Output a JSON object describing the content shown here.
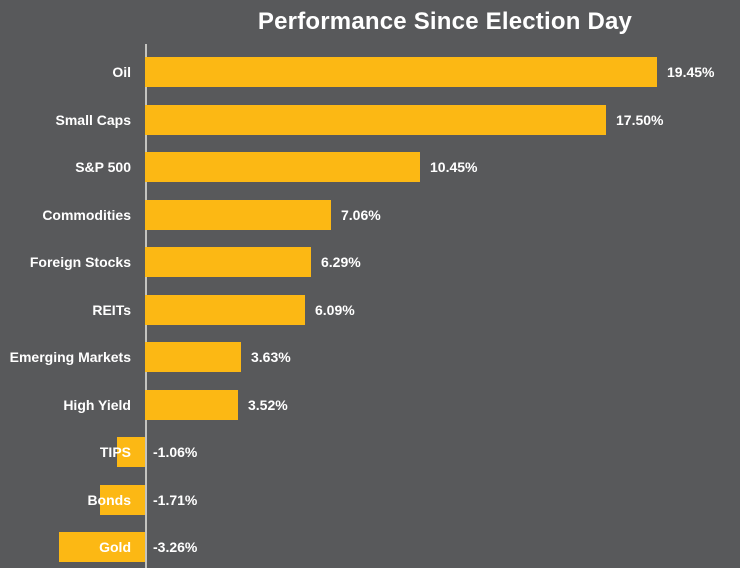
{
  "chart_data": {
    "type": "bar",
    "orientation": "horizontal",
    "title": "Performance Since Election Day",
    "categories": [
      "Oil",
      "Small Caps",
      "S&P 500",
      "Commodities",
      "Foreign Stocks",
      "REITs",
      "Emerging Markets",
      "High Yield",
      "TIPS",
      "Bonds",
      "Gold"
    ],
    "values": [
      19.45,
      17.5,
      10.45,
      7.06,
      6.29,
      6.09,
      3.63,
      3.52,
      -1.06,
      -1.71,
      -3.26
    ],
    "value_labels": [
      "19.45%",
      "17.50%",
      "10.45%",
      "7.06%",
      "6.29%",
      "6.09%",
      "3.63%",
      "3.52%",
      "-1.06%",
      "-1.71%",
      "-3.26%"
    ],
    "xlabel": "",
    "ylabel": "",
    "xlim": [
      -3.5,
      22
    ],
    "baseline": 0,
    "grid": "off",
    "legend": "none",
    "value_label_position": "end-of-bar",
    "colors": {
      "bar": "#FCB814",
      "background": "#58595B",
      "text": "#FFFFFF",
      "axis_line": "#C4C4C0"
    }
  }
}
